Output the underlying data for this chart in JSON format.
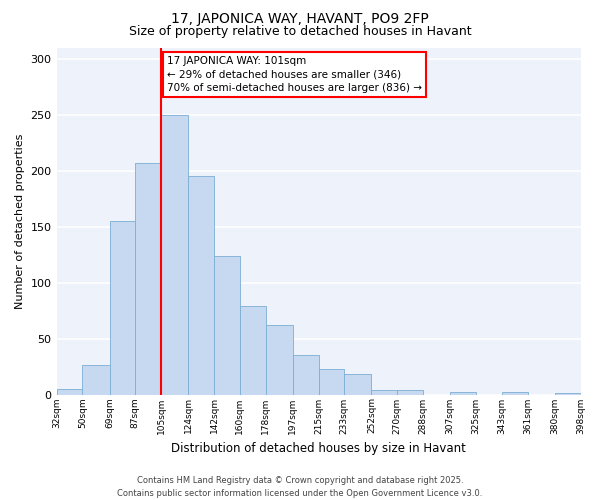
{
  "title": "17, JAPONICA WAY, HAVANT, PO9 2FP",
  "subtitle": "Size of property relative to detached houses in Havant",
  "xlabel": "Distribution of detached houses by size in Havant",
  "ylabel": "Number of detached properties",
  "bins": [
    32,
    50,
    69,
    87,
    105,
    124,
    142,
    160,
    178,
    197,
    215,
    233,
    252,
    270,
    288,
    307,
    325,
    343,
    361,
    380,
    398
  ],
  "counts": [
    5,
    26,
    155,
    207,
    250,
    195,
    124,
    79,
    62,
    35,
    23,
    18,
    4,
    4,
    0,
    2,
    0,
    2,
    0,
    1
  ],
  "bar_color": "#c6d9f0",
  "bar_edge_color": "#7bafd4",
  "vline_x": 105,
  "vline_color": "red",
  "annotation_line1": "17 JAPONICA WAY: 101sqm",
  "annotation_line2": "← 29% of detached houses are smaller (346)",
  "annotation_line3": "70% of semi-detached houses are larger (836) →",
  "ylim": [
    0,
    310
  ],
  "yticks": [
    0,
    50,
    100,
    150,
    200,
    250,
    300
  ],
  "background_color": "#eef2fb",
  "grid_color": "#ffffff",
  "footer_line1": "Contains HM Land Registry data © Crown copyright and database right 2025.",
  "footer_line2": "Contains public sector information licensed under the Open Government Licence v3.0.",
  "title_fontsize": 10,
  "subtitle_fontsize": 9,
  "xlabel_fontsize": 8.5,
  "ylabel_fontsize": 8,
  "tick_fontsize": 6.5,
  "tick_labels": [
    "32sqm",
    "50sqm",
    "69sqm",
    "87sqm",
    "105sqm",
    "124sqm",
    "142sqm",
    "160sqm",
    "178sqm",
    "197sqm",
    "215sqm",
    "233sqm",
    "252sqm",
    "270sqm",
    "288sqm",
    "307sqm",
    "325sqm",
    "343sqm",
    "361sqm",
    "380sqm",
    "398sqm"
  ]
}
